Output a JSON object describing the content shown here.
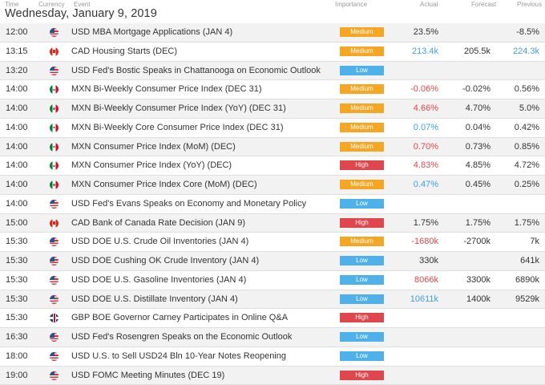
{
  "columns": {
    "time": "Time",
    "currency": "Currency",
    "event": "Event",
    "importance": "Importance",
    "actual": "Actual",
    "forecast": "Forecast",
    "previous": "Previous"
  },
  "date_heading": "Wednesday, January 9, 2019",
  "colors": {
    "medium": "#f5a623",
    "low": "#4eb1e9",
    "high": "#e0474c",
    "red_value": "#e0474c",
    "blue_value": "#3ea0e0"
  },
  "rows": [
    {
      "time": "12:00",
      "flag": "us-flag-icon",
      "event": "USD MBA Mortgage Applications (JAN 4)",
      "importance": "Medium",
      "actual": "23.5%",
      "actual_color": "black",
      "forecast": "",
      "previous": "-8.5%",
      "previous_color": "black"
    },
    {
      "time": "13:15",
      "flag": "ca-flag-icon",
      "event": "CAD Housing Starts (DEC)",
      "importance": "Medium",
      "actual": "213.4k",
      "actual_color": "blue",
      "forecast": "205.5k",
      "previous": "224.3k",
      "previous_color": "blue"
    },
    {
      "time": "13:20",
      "flag": "us-flag-icon",
      "event": "USD Fed's Bostic Speaks in Chattanooga on Economic Outlook",
      "importance": "Low",
      "actual": "",
      "actual_color": "black",
      "forecast": "",
      "previous": "",
      "previous_color": "black"
    },
    {
      "time": "14:00",
      "flag": "mx-flag-icon",
      "event": "MXN Bi-Weekly Consumer Price Index (DEC 31)",
      "importance": "Medium",
      "actual": "-0.06%",
      "actual_color": "red",
      "forecast": "-0.02%",
      "previous": "0.56%",
      "previous_color": "black"
    },
    {
      "time": "14:00",
      "flag": "mx-flag-icon",
      "event": "MXN Bi-Weekly Consumer Price Index (YoY) (DEC 31)",
      "importance": "Medium",
      "actual": "4.66%",
      "actual_color": "red",
      "forecast": "4.70%",
      "previous": "5.0%",
      "previous_color": "black"
    },
    {
      "time": "14:00",
      "flag": "mx-flag-icon",
      "event": "MXN Bi-Weekly Core Consumer Price Index (DEC 31)",
      "importance": "Medium",
      "actual": "0.07%",
      "actual_color": "blue",
      "forecast": "0.04%",
      "previous": "0.42%",
      "previous_color": "black"
    },
    {
      "time": "14:00",
      "flag": "mx-flag-icon",
      "event": "MXN Consumer Price Index (MoM) (DEC)",
      "importance": "Medium",
      "actual": "0.70%",
      "actual_color": "red",
      "forecast": "0.73%",
      "previous": "0.85%",
      "previous_color": "black"
    },
    {
      "time": "14:00",
      "flag": "mx-flag-icon",
      "event": "MXN Consumer Price Index (YoY) (DEC)",
      "importance": "High",
      "actual": "4.83%",
      "actual_color": "red",
      "forecast": "4.85%",
      "previous": "4.72%",
      "previous_color": "black"
    },
    {
      "time": "14:00",
      "flag": "mx-flag-icon",
      "event": "MXN Consumer Price Index Core (MoM) (DEC)",
      "importance": "Medium",
      "actual": "0.47%",
      "actual_color": "blue",
      "forecast": "0.45%",
      "previous": "0.25%",
      "previous_color": "black"
    },
    {
      "time": "14:00",
      "flag": "us-flag-icon",
      "event": "USD Fed's Evans Speaks on Economy and Monetary Policy",
      "importance": "Low",
      "actual": "",
      "actual_color": "black",
      "forecast": "",
      "previous": "",
      "previous_color": "black"
    },
    {
      "time": "15:00",
      "flag": "ca-flag-icon",
      "event": "CAD Bank of Canada Rate Decision (JAN 9)",
      "importance": "High",
      "actual": "1.75%",
      "actual_color": "black",
      "forecast": "1.75%",
      "previous": "1.75%",
      "previous_color": "black"
    },
    {
      "time": "15:30",
      "flag": "us-flag-icon",
      "event": "USD DOE U.S. Crude Oil Inventories (JAN 4)",
      "importance": "Medium",
      "actual": "-1680k",
      "actual_color": "red",
      "forecast": "-2700k",
      "previous": "7k",
      "previous_color": "black"
    },
    {
      "time": "15:30",
      "flag": "us-flag-icon",
      "event": "USD DOE Cushing OK Crude Inventory (JAN 4)",
      "importance": "Low",
      "actual": "330k",
      "actual_color": "black",
      "forecast": "",
      "previous": "641k",
      "previous_color": "black"
    },
    {
      "time": "15:30",
      "flag": "us-flag-icon",
      "event": "USD DOE U.S. Gasoline Inventories (JAN 4)",
      "importance": "Low",
      "actual": "8066k",
      "actual_color": "red",
      "forecast": "3300k",
      "previous": "6890k",
      "previous_color": "black"
    },
    {
      "time": "15:30",
      "flag": "us-flag-icon",
      "event": "USD DOE U.S. Distillate Inventory (JAN 4)",
      "importance": "Low",
      "actual": "10611k",
      "actual_color": "blue",
      "forecast": "1400k",
      "previous": "9529k",
      "previous_color": "black"
    },
    {
      "time": "15:30",
      "flag": "gb-flag-icon",
      "event": "GBP BOE Governor Carney Participates in Online Q&A",
      "importance": "High",
      "actual": "",
      "actual_color": "black",
      "forecast": "",
      "previous": "",
      "previous_color": "black"
    },
    {
      "time": "16:30",
      "flag": "us-flag-icon",
      "event": "USD Fed's Rosengren Speaks on the Economic Outlook",
      "importance": "Low",
      "actual": "",
      "actual_color": "black",
      "forecast": "",
      "previous": "",
      "previous_color": "black"
    },
    {
      "time": "18:00",
      "flag": "us-flag-icon",
      "event": "USD U.S. to Sell USD24 Bln 10-Year Notes Reopening",
      "importance": "Low",
      "actual": "",
      "actual_color": "black",
      "forecast": "",
      "previous": "",
      "previous_color": "black"
    },
    {
      "time": "19:00",
      "flag": "us-flag-icon",
      "event": "USD FOMC Meeting Minutes (DEC 19)",
      "importance": "High",
      "actual": "",
      "actual_color": "black",
      "forecast": "",
      "previous": "",
      "previous_color": "black"
    }
  ]
}
